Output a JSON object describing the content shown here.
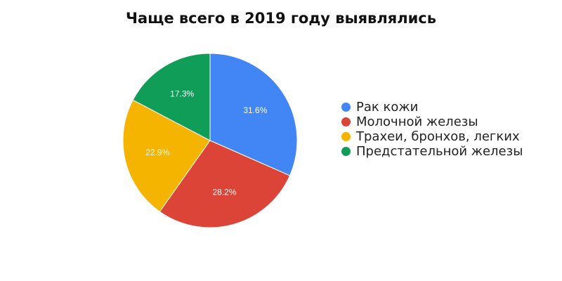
{
  "chart_data": {
    "type": "pie",
    "title": "Чаще всего в 2019 году выявлялись",
    "legend_position": "right",
    "series": [
      {
        "name": "Рак кожи",
        "value": 31.6,
        "label": "31.6%",
        "color": "#4285F4"
      },
      {
        "name": "Молочной железы",
        "value": 28.2,
        "label": "28.2%",
        "color": "#DB4437"
      },
      {
        "name": "Трахеи, бронхов, легких",
        "value": 22.9,
        "label": "22.9%",
        "color": "#F4B400"
      },
      {
        "name": "Предстательной железы",
        "value": 17.3,
        "label": "17.3%",
        "color": "#0F9D58"
      }
    ]
  }
}
